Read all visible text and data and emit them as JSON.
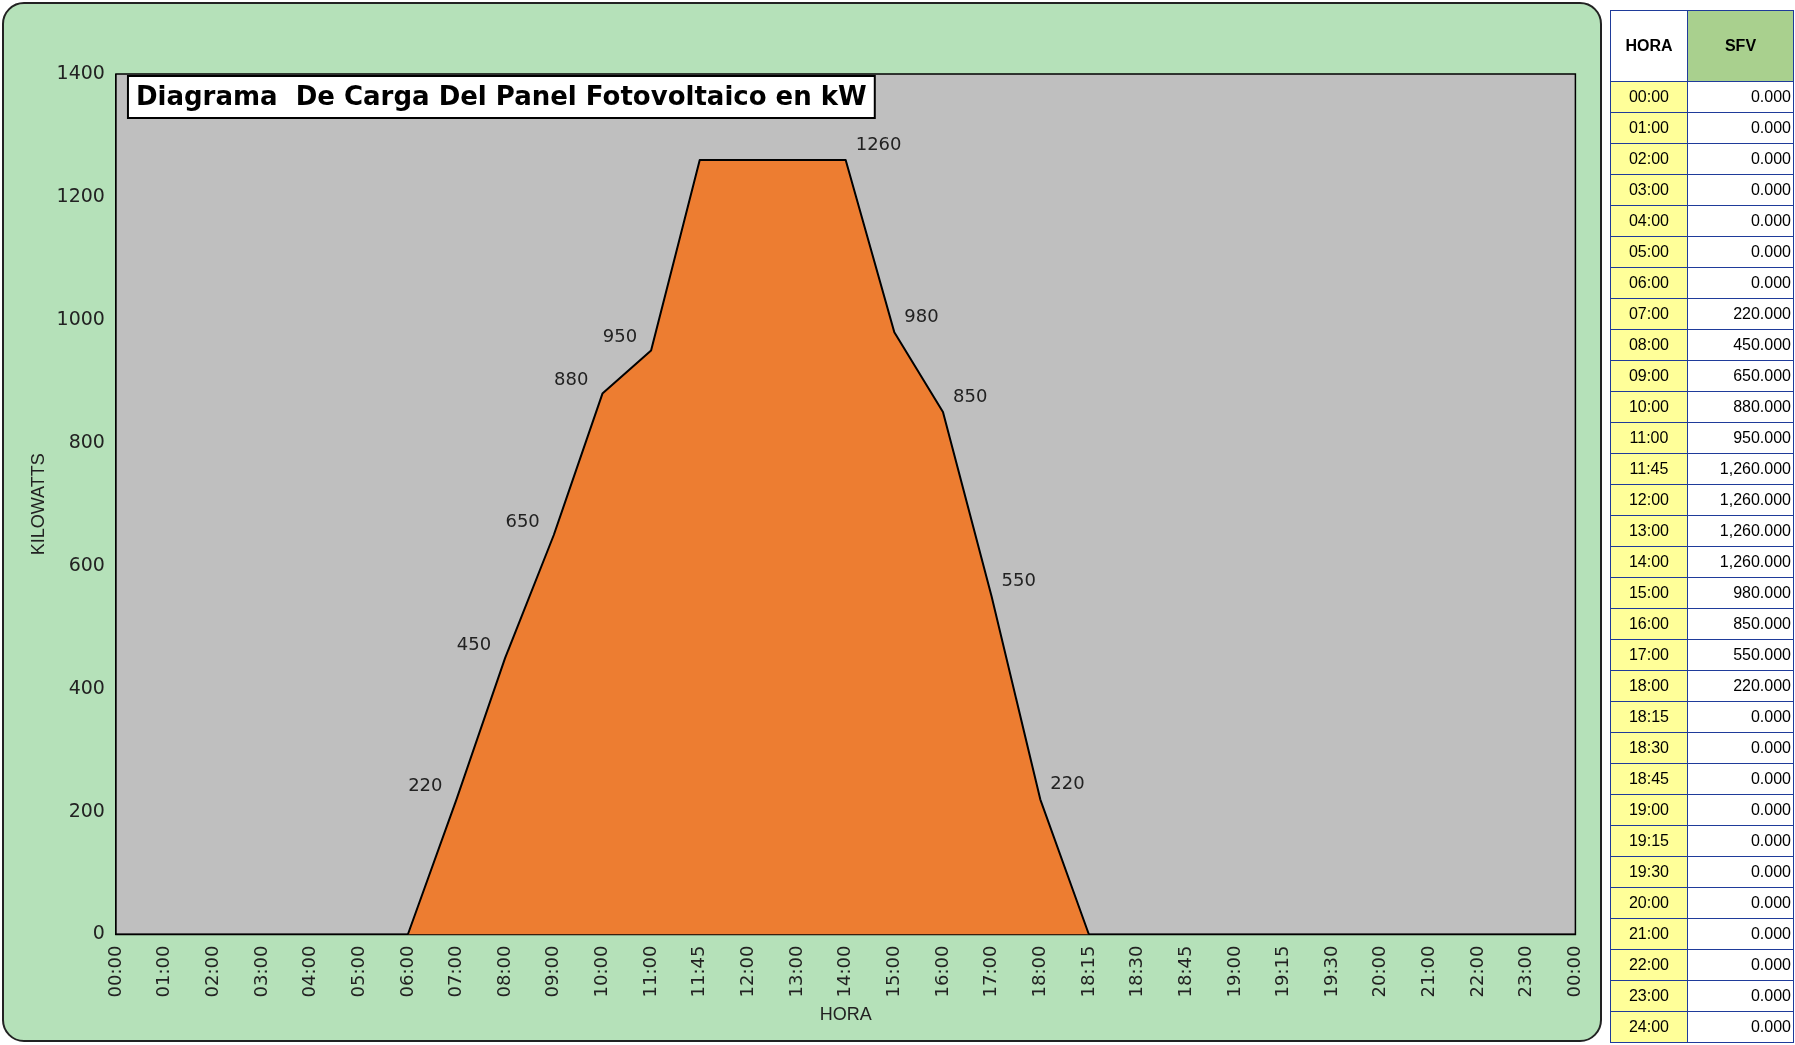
{
  "chart_data": [
    {
      "type": "area",
      "title": "Diagrama  De Carga Del Panel Fotovoltaico en kW",
      "xlabel": "HORA",
      "ylabel": "KILOWATTS",
      "categories": [
        "00:00",
        "01:00",
        "02:00",
        "03:00",
        "04:00",
        "05:00",
        "06:00",
        "07:00",
        "08:00",
        "09:00",
        "10:00",
        "11:00",
        "11:45",
        "12:00",
        "13:00",
        "14:00",
        "15:00",
        "16:00",
        "17:00",
        "18:00",
        "18:15",
        "18:30",
        "18:45",
        "19:00",
        "19:15",
        "19:30",
        "20:00",
        "21:00",
        "22:00",
        "23:00",
        "00:00"
      ],
      "series": [
        {
          "color": "#ed7d31",
          "values": [
            0,
            0,
            0,
            0,
            0,
            0,
            0,
            220,
            450,
            650,
            880,
            950,
            1260,
            1260,
            1260,
            1260,
            980,
            850,
            550,
            220,
            0,
            0,
            0,
            0,
            0,
            0,
            0,
            0,
            0,
            0,
            0
          ],
          "value_labels": [
            null,
            null,
            null,
            null,
            null,
            null,
            null,
            "220",
            "450",
            "650",
            "880",
            "950",
            null,
            null,
            null,
            "1260",
            "980",
            "850",
            "550",
            "220",
            null,
            null,
            null,
            null,
            null,
            null,
            null,
            null,
            null,
            null,
            null
          ]
        }
      ],
      "ylim": [
        0,
        1400
      ],
      "yticks": [
        0,
        200,
        400,
        600,
        800,
        1000,
        1200,
        1400
      ],
      "grid": false,
      "legend": false
    },
    {
      "type": "other",
      "annotations": [
        "HORA",
        "SFV"
      ],
      "categories": [
        "00:00",
        "01:00",
        "02:00",
        "03:00",
        "04:00",
        "05:00",
        "06:00",
        "07:00",
        "08:00",
        "09:00",
        "10:00",
        "11:00",
        "11:45",
        "12:00",
        "13:00",
        "14:00",
        "15:00",
        "16:00",
        "17:00",
        "18:00",
        "18:15",
        "18:30",
        "18:45",
        "19:00",
        "19:15",
        "19:30",
        "20:00",
        "21:00",
        "22:00",
        "23:00",
        "24:00"
      ],
      "value_labels": [
        "0.000",
        "0.000",
        "0.000",
        "0.000",
        "0.000",
        "0.000",
        "0.000",
        "220.000",
        "450.000",
        "650.000",
        "880.000",
        "950.000",
        "1,260.000",
        "1,260.000",
        "1,260.000",
        "1,260.000",
        "980.000",
        "850.000",
        "550.000",
        "220.000",
        "0.000",
        "0.000",
        "0.000",
        "0.000",
        "0.000",
        "0.000",
        "0.000",
        "0.000",
        "0.000",
        "0.000",
        "0.000"
      ]
    }
  ]
}
